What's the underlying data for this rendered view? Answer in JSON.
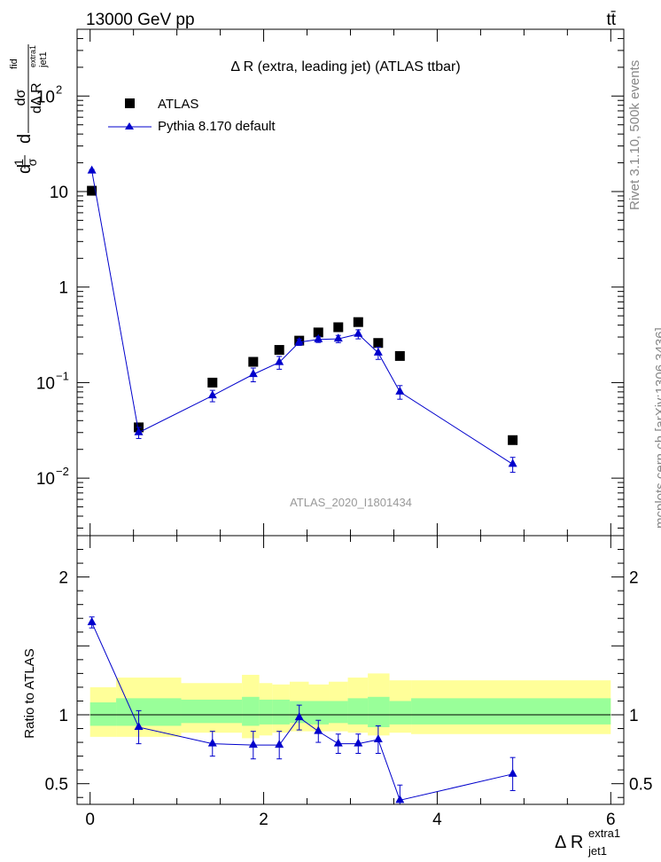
{
  "header": {
    "left": "13000 GeV pp",
    "right": "tt̄"
  },
  "side_labels": {
    "rivet": "Rivet 3.1.10,  500k events",
    "mcplots": "mcplots.cern.ch [arXiv:1306.3436]"
  },
  "chart_data": [
    {
      "type": "scatter",
      "title": "Δ R (extra, leading jet) (ATLAS ttbar)",
      "watermark": "ATLAS_2020_I1801434",
      "ylabel": "1/σ dσ/dΔR",
      "ylabel_parts": {
        "num_main": "d",
        "frac_top": "1",
        "frac_bottom": "σ",
        "dsigma": "dσ",
        "fid": "fid",
        "den": "dΔ R",
        "sub": "jet1",
        "sup": "extra1"
      },
      "yscale": "log",
      "ylim": [
        0.0025,
        500
      ],
      "xlim": [
        -0.15,
        6.15
      ],
      "y_ticks": [
        {
          "value": 0.01,
          "base": "10",
          "exp": "−2"
        },
        {
          "value": 0.1,
          "base": "10",
          "exp": "−1"
        },
        {
          "value": 1,
          "base": "1",
          "exp": ""
        },
        {
          "value": 10,
          "base": "10",
          "exp": ""
        },
        {
          "value": 100,
          "base": "10",
          "exp": "2"
        }
      ],
      "legend_position": "top-left",
      "series": [
        {
          "name": "ATLAS",
          "marker": "square",
          "color": "#000000",
          "x": [
            0.02,
            0.56,
            1.41,
            1.88,
            2.18,
            2.41,
            2.63,
            2.86,
            3.09,
            3.32,
            3.57,
            4.87
          ],
          "y": [
            10.2,
            0.034,
            0.1,
            0.165,
            0.22,
            0.275,
            0.335,
            0.38,
            0.43,
            0.26,
            0.19,
            0.025
          ]
        },
        {
          "name": "Pythia 8.170 default",
          "marker": "triangle",
          "color": "#0000cc",
          "x": [
            0.02,
            0.56,
            1.41,
            1.88,
            2.18,
            2.41,
            2.63,
            2.86,
            3.09,
            3.32,
            3.57,
            4.87
          ],
          "y": [
            16.5,
            0.03,
            0.073,
            0.122,
            0.163,
            0.265,
            0.283,
            0.287,
            0.322,
            0.205,
            0.08,
            0.014
          ],
          "y_err_low": [
            0.5,
            0.004,
            0.01,
            0.02,
            0.025,
            0.02,
            0.02,
            0.025,
            0.035,
            0.03,
            0.013,
            0.0025
          ],
          "y_err_high": [
            0.5,
            0.004,
            0.01,
            0.02,
            0.025,
            0.02,
            0.02,
            0.025,
            0.035,
            0.03,
            0.013,
            0.0025
          ]
        }
      ]
    },
    {
      "type": "line",
      "ylabel": "Ratio to ATLAS",
      "xlabel": "Δ R",
      "xlabel_sub": "jet1",
      "xlabel_sup": "extra1",
      "ylim": [
        0.35,
        2.3
      ],
      "xlim": [
        -0.15,
        6.15
      ],
      "x_ticks": [
        0,
        2,
        4,
        6
      ],
      "y_ticks": [
        0.5,
        1,
        2
      ],
      "bands": {
        "edges": [
          0,
          0.3,
          1.05,
          1.75,
          1.95,
          2.1,
          2.3,
          2.52,
          2.75,
          2.97,
          3.2,
          3.45,
          3.7,
          6.0
        ],
        "outer_low": [
          0.84,
          0.84,
          0.87,
          0.83,
          0.85,
          0.87,
          0.88,
          0.88,
          0.88,
          0.87,
          0.85,
          0.87,
          0.86
        ],
        "outer_high": [
          1.2,
          1.27,
          1.23,
          1.29,
          1.23,
          1.22,
          1.24,
          1.22,
          1.24,
          1.27,
          1.3,
          1.25,
          1.25
        ],
        "inner_low": [
          0.92,
          0.92,
          0.94,
          0.92,
          0.93,
          0.93,
          0.94,
          0.93,
          0.94,
          0.93,
          0.91,
          0.93,
          0.93
        ],
        "inner_high": [
          1.09,
          1.12,
          1.11,
          1.13,
          1.11,
          1.11,
          1.1,
          1.1,
          1.1,
          1.12,
          1.13,
          1.1,
          1.12
        ]
      },
      "series": [
        {
          "name": "Pythia 8.170 default",
          "marker": "triangle",
          "color": "#0000cc",
          "x": [
            0.02,
            0.56,
            1.41,
            1.88,
            2.18,
            2.41,
            2.63,
            2.86,
            3.09,
            3.32,
            3.57,
            4.87
          ],
          "y": [
            1.67,
            0.91,
            0.79,
            0.78,
            0.78,
            0.98,
            0.88,
            0.79,
            0.79,
            0.82,
            0.38,
            0.57
          ],
          "y_err_low": [
            0.04,
            0.12,
            0.09,
            0.1,
            0.1,
            0.09,
            0.08,
            0.07,
            0.07,
            0.1,
            0.11,
            0.12
          ],
          "y_err_high": [
            0.04,
            0.12,
            0.09,
            0.1,
            0.1,
            0.09,
            0.08,
            0.07,
            0.07,
            0.1,
            0.11,
            0.12
          ]
        }
      ]
    }
  ],
  "colors": {
    "band_outer": "#ffff99",
    "band_inner": "#99ff99",
    "mc": "#0000cc",
    "data": "#000000",
    "watermark": "#999999"
  }
}
